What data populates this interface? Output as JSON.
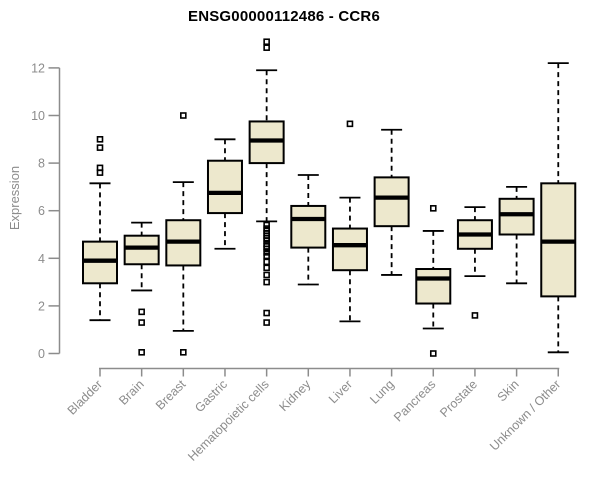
{
  "chart_data": {
    "type": "boxplot",
    "title": "ENSG00000112486 - CCR6",
    "xlabel": "",
    "ylabel": "Expression",
    "ylim": [
      0,
      13.3
    ],
    "yticks": [
      0,
      2,
      4,
      6,
      8,
      10,
      12
    ],
    "grid": false,
    "legend": "none",
    "categories": [
      "Bladder",
      "Brain",
      "Breast",
      "Gastric",
      "Hematopoietic cells",
      "Kidney",
      "Liver",
      "Lung",
      "Pancreas",
      "Prostate",
      "Skin",
      "Unknown / Other"
    ],
    "series": [
      {
        "name": "Bladder",
        "low": 1.4,
        "q1": 2.95,
        "median": 3.9,
        "q3": 4.7,
        "high": 7.15,
        "outliers": [
          7.6,
          7.8,
          8.65,
          9.0
        ]
      },
      {
        "name": "Brain",
        "low": 2.65,
        "q1": 3.75,
        "median": 4.45,
        "q3": 4.95,
        "high": 5.5,
        "outliers": [
          1.75,
          1.3,
          0.05
        ]
      },
      {
        "name": "Breast",
        "low": 0.95,
        "q1": 3.7,
        "median": 4.7,
        "q3": 5.6,
        "high": 7.2,
        "outliers": [
          10.0,
          0.05
        ]
      },
      {
        "name": "Gastric",
        "low": 4.4,
        "q1": 5.9,
        "median": 6.75,
        "q3": 8.1,
        "high": 9.0,
        "outliers": []
      },
      {
        "name": "Hematopoietic cells",
        "low": 5.55,
        "q1": 8.0,
        "median": 8.95,
        "q3": 9.75,
        "high": 11.9,
        "outliers": [
          13.1,
          12.85,
          5.4,
          5.25,
          5.15,
          5.05,
          4.95,
          4.85,
          4.75,
          4.6,
          4.5,
          4.4,
          4.25,
          4.1,
          3.85,
          3.6,
          3.3,
          3.0,
          1.7,
          1.3
        ]
      },
      {
        "name": "Kidney",
        "low": 2.9,
        "q1": 4.45,
        "median": 5.65,
        "q3": 6.2,
        "high": 7.5,
        "outliers": []
      },
      {
        "name": "Liver",
        "low": 1.35,
        "q1": 3.5,
        "median": 4.55,
        "q3": 5.25,
        "high": 6.55,
        "outliers": [
          9.65
        ]
      },
      {
        "name": "Lung",
        "low": 3.3,
        "q1": 5.35,
        "median": 6.55,
        "q3": 7.4,
        "high": 9.4,
        "outliers": []
      },
      {
        "name": "Pancreas",
        "low": 1.05,
        "q1": 2.1,
        "median": 3.15,
        "q3": 3.55,
        "high": 5.15,
        "outliers": [
          6.1,
          0.0
        ]
      },
      {
        "name": "Prostate",
        "low": 3.25,
        "q1": 4.4,
        "median": 5.0,
        "q3": 5.6,
        "high": 6.15,
        "outliers": [
          1.6
        ]
      },
      {
        "name": "Skin",
        "low": 2.95,
        "q1": 5.0,
        "median": 5.85,
        "q3": 6.5,
        "high": 7.0,
        "outliers": []
      },
      {
        "name": "Unknown / Other",
        "low": 0.05,
        "q1": 2.4,
        "median": 4.7,
        "q3": 7.15,
        "high": 12.2,
        "outliers": []
      }
    ],
    "colors": {
      "box_fill": "#EDE8CD",
      "box_border": "#000000",
      "median": "#000000",
      "whisker": "#000000",
      "outlier": "#000000",
      "axis": "#8C8C8C",
      "tick_text": "#8C8C8C",
      "title_text": "#000000",
      "background": "#FFFFFF"
    }
  }
}
